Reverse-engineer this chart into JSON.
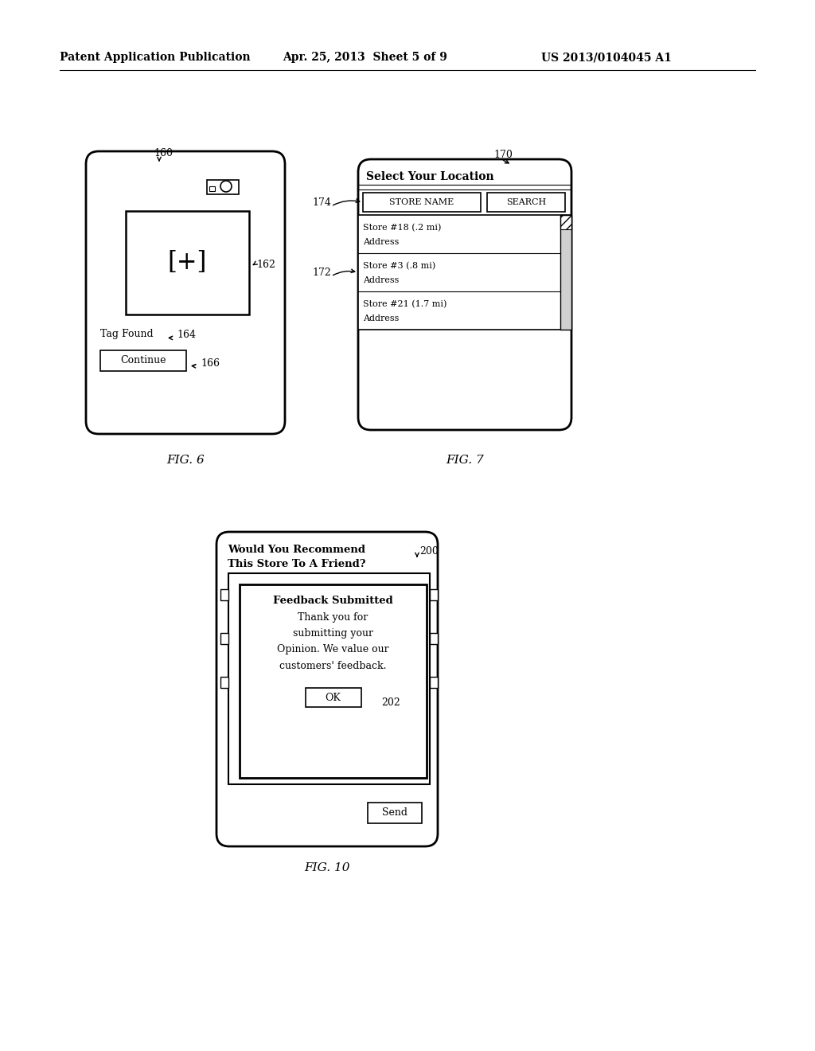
{
  "header_left": "Patent Application Publication",
  "header_mid": "Apr. 25, 2013  Sheet 5 of 9",
  "header_right": "US 2013/0104045 A1",
  "fig6_label": "FIG. 6",
  "fig7_label": "FIG. 7",
  "fig10_label": "FIG. 10",
  "bg_color": "#ffffff",
  "line_color": "#000000"
}
